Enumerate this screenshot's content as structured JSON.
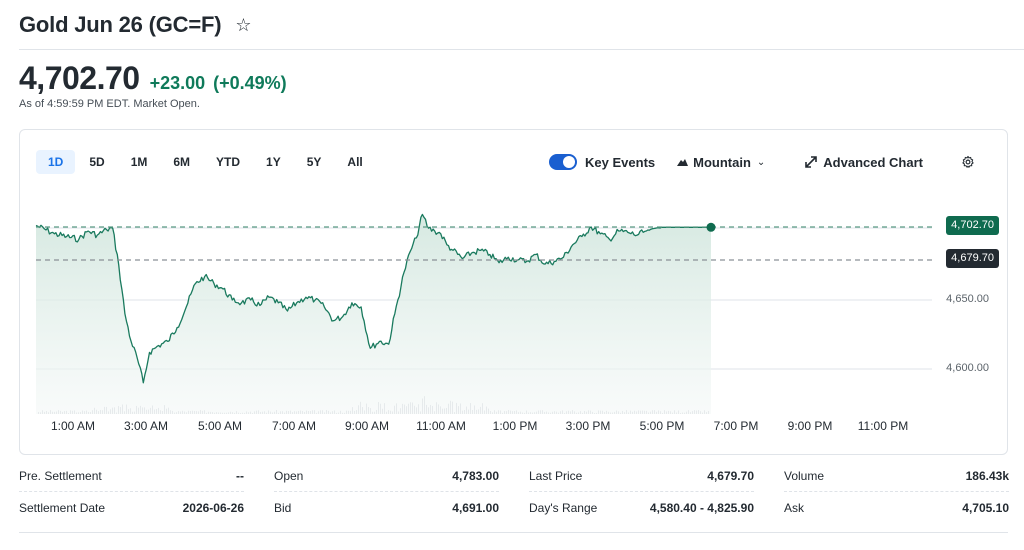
{
  "header": {
    "title": "Gold Jun 26 (GC=F)",
    "watchlist_icon": "star-icon"
  },
  "quote": {
    "price": "4,702.70",
    "change": "+23.00",
    "change_pct": "(+0.49%)",
    "as_of": "As of 4:59:59 PM EDT. Market Open.",
    "up_color": "#0f7a5a"
  },
  "chart_controls": {
    "ranges": [
      {
        "label": "1D",
        "active": true
      },
      {
        "label": "5D",
        "active": false
      },
      {
        "label": "1M",
        "active": false
      },
      {
        "label": "6M",
        "active": false
      },
      {
        "label": "YTD",
        "active": false
      },
      {
        "label": "1Y",
        "active": false
      },
      {
        "label": "5Y",
        "active": false
      },
      {
        "label": "All",
        "active": false
      }
    ],
    "key_events_label": "Key Events",
    "key_events_on": true,
    "chart_type_label": "Mountain",
    "advanced_chart_label": "Advanced Chart",
    "settings_icon": "gear-icon"
  },
  "chart_data": {
    "type": "area",
    "title": "Gold Jun 26 (GC=F) 1D",
    "xlabel": "",
    "ylabel": "",
    "x_tick_labels": [
      "1:00 AM",
      "3:00 AM",
      "5:00 AM",
      "7:00 AM",
      "9:00 AM",
      "11:00 AM",
      "1:00 PM",
      "3:00 PM",
      "5:00 PM",
      "7:00 PM",
      "9:00 PM",
      "11:00 PM"
    ],
    "y_tick_labels": [
      "4,650.00",
      "4,600.00"
    ],
    "ylim": [
      4570,
      4720
    ],
    "current_price_label": "4,702.70",
    "previous_close_label": "4,679.70",
    "current_price": 4702.7,
    "previous_close": 4679.7,
    "grid": true,
    "line_color": "#1a7a5e",
    "series": [
      {
        "name": "Price",
        "x": [
          "00:00",
          "00:30",
          "00:50",
          "01:10",
          "01:25",
          "01:40",
          "01:55",
          "02:05",
          "02:15",
          "02:25",
          "02:35",
          "02:45",
          "02:55",
          "03:05",
          "03:20",
          "03:35",
          "03:50",
          "04:05",
          "04:20",
          "04:35",
          "04:50",
          "05:05",
          "05:20",
          "05:35",
          "05:50",
          "06:05",
          "06:20",
          "06:35",
          "06:50",
          "07:05",
          "07:20",
          "07:35",
          "07:50",
          "08:05",
          "08:20",
          "08:35",
          "08:50",
          "09:05",
          "09:20",
          "09:35",
          "09:45",
          "10:00",
          "10:10",
          "10:20",
          "10:30",
          "10:40",
          "10:50",
          "11:00",
          "11:10",
          "11:20",
          "11:35",
          "11:50",
          "12:05",
          "12:20",
          "12:35",
          "12:50",
          "13:05",
          "13:20",
          "13:35",
          "13:50",
          "14:05",
          "14:20",
          "14:35",
          "14:50",
          "15:05",
          "15:20",
          "15:35",
          "15:50",
          "16:05",
          "16:20",
          "16:35",
          "16:50",
          "17:00"
        ],
        "values": [
          4704,
          4698,
          4696,
          4694,
          4700,
          4697,
          4701,
          4702,
          4675,
          4640,
          4620,
          4608,
          4590,
          4612,
          4617,
          4620,
          4630,
          4645,
          4662,
          4667,
          4662,
          4658,
          4650,
          4648,
          4650,
          4646,
          4652,
          4648,
          4642,
          4648,
          4652,
          4650,
          4645,
          4635,
          4638,
          4648,
          4645,
          4615,
          4620,
          4618,
          4640,
          4670,
          4685,
          4695,
          4712,
          4702,
          4700,
          4698,
          4690,
          4686,
          4680,
          4684,
          4686,
          4683,
          4677,
          4681,
          4679,
          4678,
          4683,
          4676,
          4678,
          4681,
          4690,
          4696,
          4703,
          4698,
          4694,
          4700,
          4699,
          4697,
          4700,
          4702,
          4702.7
        ]
      }
    ],
    "volume_bars": "light gray bars along bottom, peaks around 10:00-11:00 AM"
  },
  "stats": {
    "columns": [
      [
        {
          "label": "Pre. Settlement",
          "value": "--"
        },
        {
          "label": "Settlement Date",
          "value": "2026-06-26"
        }
      ],
      [
        {
          "label": "Open",
          "value": "4,783.00"
        },
        {
          "label": "Bid",
          "value": "4,691.00"
        }
      ],
      [
        {
          "label": "Last Price",
          "value": "4,679.70"
        },
        {
          "label": "Day's Range",
          "value": "4,580.40 - 4,825.90"
        }
      ],
      [
        {
          "label": "Volume",
          "value": "186.43k"
        },
        {
          "label": "Ask",
          "value": "4,705.10"
        }
      ]
    ]
  }
}
